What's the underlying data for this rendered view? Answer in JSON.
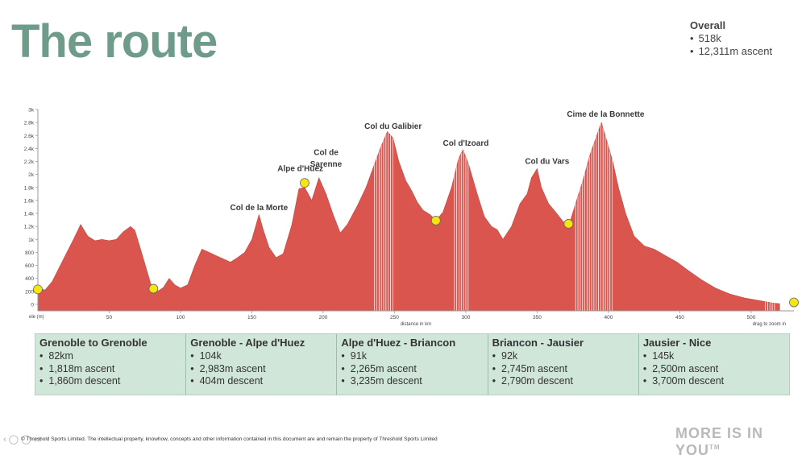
{
  "page": {
    "title": "The route"
  },
  "overall": {
    "heading": "Overall",
    "items": [
      "518k",
      "12,311m ascent"
    ]
  },
  "chart_data": {
    "type": "area",
    "xlabel": "distance in km",
    "ylabel": "ele (m)",
    "xlim": [
      0,
      530
    ],
    "ylim": [
      -100,
      3000
    ],
    "xticks": [
      "50",
      "100",
      "150",
      "200",
      "250",
      "300",
      "350",
      "400",
      "450",
      "500"
    ],
    "yticks": [
      "0",
      "200",
      "400",
      "600",
      "800",
      "1k",
      "1.2k",
      "1.4k",
      "1.6k",
      "1.8k",
      "2k",
      "2.2k",
      "2.4k",
      "2.6k",
      "2.8k",
      "3k"
    ],
    "hint": "drag to zoom in",
    "colors": {
      "fill": "#d9554e",
      "stripe": "#ffffff",
      "marker": "#f5e60f"
    },
    "profile": [
      [
        0,
        250
      ],
      [
        5,
        220
      ],
      [
        10,
        350
      ],
      [
        18,
        700
      ],
      [
        25,
        1000
      ],
      [
        30,
        1230
      ],
      [
        35,
        1050
      ],
      [
        40,
        980
      ],
      [
        45,
        1000
      ],
      [
        50,
        980
      ],
      [
        55,
        1000
      ],
      [
        60,
        1120
      ],
      [
        65,
        1200
      ],
      [
        68,
        1140
      ],
      [
        72,
        850
      ],
      [
        76,
        550
      ],
      [
        80,
        250
      ],
      [
        84,
        200
      ],
      [
        88,
        260
      ],
      [
        92,
        400
      ],
      [
        96,
        300
      ],
      [
        100,
        250
      ],
      [
        105,
        300
      ],
      [
        110,
        600
      ],
      [
        115,
        850
      ],
      [
        120,
        800
      ],
      [
        125,
        750
      ],
      [
        130,
        700
      ],
      [
        135,
        650
      ],
      [
        140,
        720
      ],
      [
        145,
        800
      ],
      [
        150,
        1000
      ],
      [
        155,
        1380
      ],
      [
        158,
        1150
      ],
      [
        162,
        880
      ],
      [
        167,
        720
      ],
      [
        172,
        780
      ],
      [
        178,
        1220
      ],
      [
        183,
        1780
      ],
      [
        187,
        1800
      ],
      [
        192,
        1600
      ],
      [
        197,
        1950
      ],
      [
        202,
        1700
      ],
      [
        207,
        1380
      ],
      [
        212,
        1100
      ],
      [
        217,
        1230
      ],
      [
        224,
        1520
      ],
      [
        230,
        1800
      ],
      [
        235,
        2100
      ],
      [
        240,
        2400
      ],
      [
        245,
        2660
      ],
      [
        249,
        2560
      ],
      [
        253,
        2200
      ],
      [
        258,
        1900
      ],
      [
        262,
        1750
      ],
      [
        266,
        1570
      ],
      [
        270,
        1450
      ],
      [
        275,
        1380
      ],
      [
        279,
        1290
      ],
      [
        284,
        1420
      ],
      [
        290,
        1800
      ],
      [
        295,
        2250
      ],
      [
        298,
        2380
      ],
      [
        302,
        2150
      ],
      [
        308,
        1700
      ],
      [
        313,
        1350
      ],
      [
        318,
        1200
      ],
      [
        322,
        1150
      ],
      [
        326,
        1000
      ],
      [
        332,
        1200
      ],
      [
        338,
        1550
      ],
      [
        343,
        1700
      ],
      [
        346,
        1950
      ],
      [
        350,
        2090
      ],
      [
        353,
        1800
      ],
      [
        358,
        1550
      ],
      [
        363,
        1420
      ],
      [
        368,
        1280
      ],
      [
        372,
        1200
      ],
      [
        377,
        1550
      ],
      [
        382,
        1900
      ],
      [
        387,
        2300
      ],
      [
        391,
        2550
      ],
      [
        395,
        2800
      ],
      [
        399,
        2500
      ],
      [
        403,
        2200
      ],
      [
        407,
        1800
      ],
      [
        412,
        1400
      ],
      [
        418,
        1050
      ],
      [
        425,
        900
      ],
      [
        432,
        850
      ],
      [
        440,
        750
      ],
      [
        448,
        650
      ],
      [
        456,
        520
      ],
      [
        465,
        380
      ],
      [
        475,
        250
      ],
      [
        485,
        160
      ],
      [
        495,
        100
      ],
      [
        505,
        60
      ],
      [
        510,
        40
      ],
      [
        515,
        20
      ],
      [
        520,
        10
      ]
    ],
    "stripes": [
      [
        236,
        250
      ],
      [
        292,
        302
      ],
      [
        377,
        404
      ],
      [
        510,
        518
      ]
    ],
    "markers": [
      [
        0,
        230
      ],
      [
        81,
        240
      ],
      [
        187,
        1870
      ],
      [
        279,
        1290
      ],
      [
        372,
        1240
      ],
      [
        530,
        30
      ]
    ],
    "annotations": [
      {
        "label": "Col  de la Morte",
        "x": 155,
        "y": 1450
      },
      {
        "label": "Alpe d'Huez",
        "x": 184,
        "y": 2050
      },
      {
        "label": "Col de",
        "x": 202,
        "y": 2300
      },
      {
        "label": "Sarenne",
        "x": 202,
        "y": 2120
      },
      {
        "label": "Col du Galibier",
        "x": 249,
        "y": 2700
      },
      {
        "label": "Col d'Izoard",
        "x": 300,
        "y": 2440
      },
      {
        "label": "Col du Vars",
        "x": 357,
        "y": 2160
      },
      {
        "label": "Cime de la Bonnette",
        "x": 398,
        "y": 2890
      }
    ]
  },
  "stages": [
    {
      "title": "Grenoble to Grenoble",
      "items": [
        "82km",
        "1,818m ascent",
        "1,860m descent"
      ]
    },
    {
      "title": "Grenoble - Alpe d'Huez",
      "items": [
        "104k",
        "2,983m ascent",
        "404m descent"
      ]
    },
    {
      "title": "Alpe d'Huez - Briancon",
      "items": [
        "91k",
        "2,265m ascent",
        "3,235m descent"
      ]
    },
    {
      "title": "Briancon - Jausier",
      "items": [
        "92k",
        "2,745m ascent",
        "2,790m descent"
      ]
    },
    {
      "title": "Jausier - Nice",
      "items": [
        "145k",
        "2,500m ascent",
        "3,700m descent"
      ]
    }
  ],
  "footer": {
    "text": "© Threshold Sports Limited.  The intellectual property, knowhow, concepts and other information contained in this document are and remain the property of Threshold Sports Limited"
  },
  "brand": {
    "text": "MORE IS IN YOU",
    "mark": "TM"
  }
}
